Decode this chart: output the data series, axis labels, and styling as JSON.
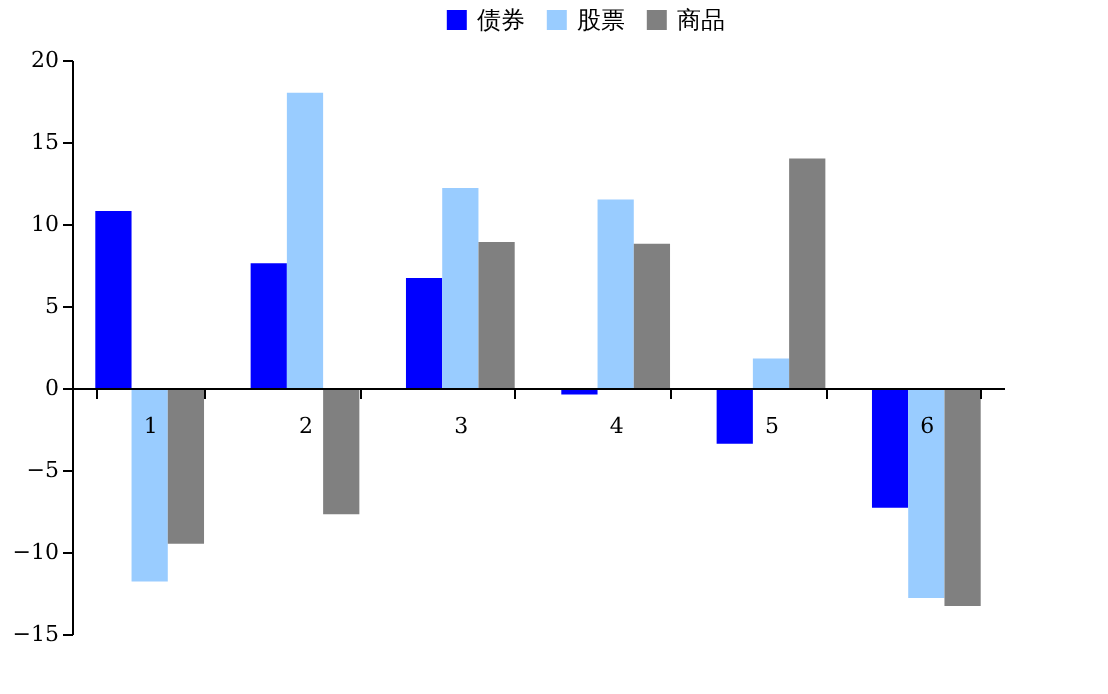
{
  "chart_data": {
    "type": "bar",
    "categories": [
      "1",
      "2",
      "3",
      "4",
      "5",
      "6"
    ],
    "series": [
      {
        "name": "债券",
        "color": "#0000ff",
        "values": [
          10.8,
          7.6,
          6.7,
          -0.4,
          -3.4,
          -7.3
        ]
      },
      {
        "name": "股票",
        "color": "#99ccff",
        "values": [
          -11.8,
          18.0,
          12.2,
          11.5,
          1.8,
          -12.8
        ]
      },
      {
        "name": "商品",
        "color": "#808080",
        "values": [
          -9.5,
          -7.7,
          8.9,
          8.8,
          14.0,
          -13.3
        ]
      }
    ],
    "ylim": [
      -15,
      20
    ],
    "yticks": [
      -15,
      -10,
      -5,
      0,
      5,
      10,
      15,
      20
    ],
    "grid": false,
    "legend": "top"
  }
}
